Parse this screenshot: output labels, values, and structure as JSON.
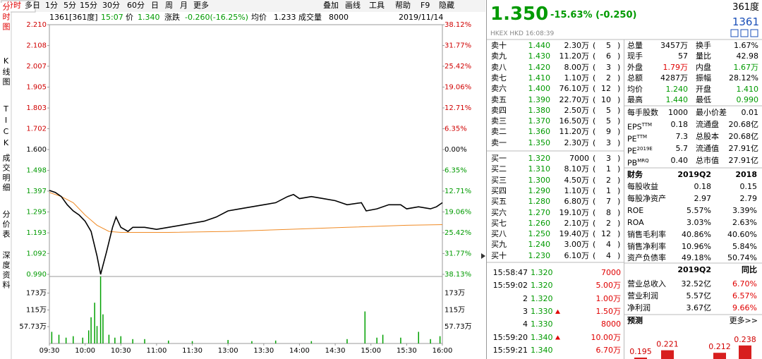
{
  "toolbar": {
    "tabs": [
      "分时",
      "多日",
      "1分",
      "5分",
      "15分",
      "30分",
      "60分",
      "日",
      "周",
      "月",
      "更多"
    ],
    "tools": [
      "叠加",
      "画线",
      "工具",
      "帮助",
      "F9",
      "隐藏"
    ]
  },
  "side_tabs": [
    "分时图",
    "K线图",
    "TICK",
    "成交明细",
    "分价表",
    "深度资料"
  ],
  "info": {
    "code": "1361[361度]",
    "time": "15:07",
    "price_label": "价",
    "price": "1.340",
    "change_label": "涨跌",
    "change": "-0.260(-16.25%)",
    "avg_label": "均价",
    "avg": "1.233",
    "vol_label": "成交量",
    "vol": "8000",
    "date": "2019/11/14"
  },
  "chart_data": {
    "type": "line",
    "xlim": [
      0,
      330
    ],
    "xticks": [
      {
        "value": 0,
        "label": "09:30"
      },
      {
        "value": 30,
        "label": "10:00"
      },
      {
        "value": 60,
        "label": "10:30"
      },
      {
        "value": 90,
        "label": "11:00"
      },
      {
        "value": 120,
        "label": "11:30"
      },
      {
        "value": 150,
        "label": "13:00"
      },
      {
        "value": 180,
        "label": "13:30"
      },
      {
        "value": 210,
        "label": "14:00"
      },
      {
        "value": 240,
        "label": "14:30"
      },
      {
        "value": 270,
        "label": "15:00"
      },
      {
        "value": 300,
        "label": "15:30"
      },
      {
        "value": 330,
        "label": "16:00"
      }
    ],
    "ylim": [
      0.99,
      2.21
    ],
    "yticks": [
      {
        "value": 2.21,
        "label": "2.210"
      },
      {
        "value": 2.108,
        "label": "2.108"
      },
      {
        "value": 2.007,
        "label": "2.007"
      },
      {
        "value": 1.905,
        "label": "1.905"
      },
      {
        "value": 1.803,
        "label": "1.803"
      },
      {
        "value": 1.702,
        "label": "1.702"
      },
      {
        "value": 1.6,
        "label": "1.600"
      },
      {
        "value": 1.498,
        "label": "1.498"
      },
      {
        "value": 1.397,
        "label": "1.397"
      },
      {
        "value": 1.295,
        "label": "1.295"
      },
      {
        "value": 1.193,
        "label": "1.193"
      },
      {
        "value": 1.092,
        "label": "1.092"
      },
      {
        "value": 0.99,
        "label": "0.990"
      }
    ],
    "y2lim": [
      -38.13,
      38.12
    ],
    "y2ticks": [
      {
        "value": 38.12,
        "label": "38.12%"
      },
      {
        "value": 31.77,
        "label": "31.77%"
      },
      {
        "value": 25.42,
        "label": "25.42%"
      },
      {
        "value": 19.06,
        "label": "19.06%"
      },
      {
        "value": 12.71,
        "label": "12.71%"
      },
      {
        "value": 6.35,
        "label": "6.35%"
      },
      {
        "value": 0,
        "label": "0.00%"
      },
      {
        "value": -6.35,
        "label": "6.35%"
      },
      {
        "value": -12.71,
        "label": "12.71%"
      },
      {
        "value": -19.06,
        "label": "19.06%"
      },
      {
        "value": -25.42,
        "label": "25.42%"
      },
      {
        "value": -31.77,
        "label": "31.77%"
      },
      {
        "value": -38.13,
        "label": "38.13%"
      }
    ],
    "series": [
      {
        "name": "价",
        "color": "#000000",
        "x": [
          0,
          5,
          10,
          15,
          20,
          25,
          30,
          35,
          40,
          43,
          48,
          53,
          56,
          60,
          66,
          70,
          80,
          90,
          100,
          110,
          120,
          130,
          140,
          150,
          160,
          170,
          180,
          190,
          200,
          205,
          210,
          220,
          230,
          240,
          250,
          262,
          266,
          275,
          285,
          295,
          300,
          310,
          320,
          325,
          330
        ],
        "values": [
          1.4,
          1.39,
          1.37,
          1.33,
          1.3,
          1.28,
          1.25,
          1.2,
          1.08,
          0.99,
          1.1,
          1.22,
          1.27,
          1.22,
          1.2,
          1.22,
          1.22,
          1.21,
          1.22,
          1.23,
          1.24,
          1.25,
          1.27,
          1.3,
          1.31,
          1.32,
          1.33,
          1.34,
          1.37,
          1.38,
          1.36,
          1.37,
          1.36,
          1.35,
          1.33,
          1.34,
          1.3,
          1.31,
          1.33,
          1.33,
          1.31,
          1.32,
          1.31,
          1.32,
          1.34
        ]
      },
      {
        "name": "均价",
        "color": "#f08a24",
        "x": [
          0,
          10,
          20,
          30,
          40,
          50,
          60,
          100,
          150,
          200,
          250,
          300,
          330
        ],
        "values": [
          1.39,
          1.37,
          1.34,
          1.28,
          1.23,
          1.2,
          1.195,
          1.195,
          1.2,
          1.21,
          1.22,
          1.23,
          1.233
        ]
      }
    ],
    "volume": {
      "color": "#00a000",
      "ylim": [
        0,
        230
      ],
      "yticks": [
        {
          "value": 57.73,
          "label": "57.73万"
        },
        {
          "value": 115,
          "label": "115万"
        },
        {
          "value": 173,
          "label": "173万"
        }
      ],
      "x": [
        2,
        8,
        14,
        20,
        28,
        33,
        35,
        38,
        40,
        43,
        45,
        50,
        55,
        60,
        70,
        80,
        100,
        120,
        150,
        170,
        190,
        220,
        250,
        265,
        275,
        280,
        295,
        310,
        320,
        328
      ],
      "values": [
        40,
        30,
        20,
        25,
        20,
        45,
        90,
        140,
        60,
        230,
        100,
        30,
        20,
        25,
        15,
        15,
        10,
        8,
        12,
        8,
        10,
        8,
        15,
        110,
        20,
        30,
        20,
        40,
        15,
        25
      ]
    }
  },
  "quote": {
    "price": "1.350",
    "change": "-15.63% (-0.250)",
    "name": "361度",
    "code": "1361",
    "meta": "HKEX  HKD  16:08:39"
  },
  "order_book": {
    "asks": [
      [
        "卖十",
        "1.440",
        "2.30万",
        "5"
      ],
      [
        "卖九",
        "1.430",
        "11.20万",
        "6"
      ],
      [
        "卖八",
        "1.420",
        "8.00万",
        "3"
      ],
      [
        "卖七",
        "1.410",
        "1.10万",
        "2"
      ],
      [
        "卖六",
        "1.400",
        "76.10万",
        "12"
      ],
      [
        "卖五",
        "1.390",
        "22.70万",
        "10"
      ],
      [
        "卖四",
        "1.380",
        "2.50万",
        "5"
      ],
      [
        "卖三",
        "1.370",
        "16.50万",
        "5"
      ],
      [
        "卖二",
        "1.360",
        "11.20万",
        "9"
      ],
      [
        "卖一",
        "1.350",
        "2.30万",
        "3"
      ]
    ],
    "bids": [
      [
        "买一",
        "1.320",
        "7000",
        "3"
      ],
      [
        "买二",
        "1.310",
        "8.10万",
        "1"
      ],
      [
        "买三",
        "1.300",
        "4.50万",
        "2"
      ],
      [
        "买四",
        "1.290",
        "1.10万",
        "1"
      ],
      [
        "买五",
        "1.280",
        "6.80万",
        "7"
      ],
      [
        "买六",
        "1.270",
        "19.10万",
        "8"
      ],
      [
        "买七",
        "1.260",
        "2.10万",
        "2"
      ],
      [
        "买八",
        "1.250",
        "19.40万",
        "12"
      ],
      [
        "买九",
        "1.240",
        "3.00万",
        "4"
      ],
      [
        "买十",
        "1.230",
        "6.10万",
        "4"
      ]
    ]
  },
  "stats": [
    [
      "总量",
      "3457万",
      "换手",
      "1.67%"
    ],
    [
      "现手",
      "57",
      "量比",
      "42.98"
    ],
    [
      "外盘",
      "1.79万",
      "内盘",
      "1.67万"
    ],
    [
      "总额",
      "4287万",
      "振幅",
      "28.12%"
    ],
    [
      "均价",
      "1.240",
      "开盘",
      "1.410"
    ],
    [
      "最高",
      "1.440",
      "最低",
      "0.990"
    ]
  ],
  "stats_colors": [
    [
      "",
      ""
    ],
    [
      "",
      ""
    ],
    [
      "up",
      "dn"
    ],
    [
      "",
      ""
    ],
    [
      "dn",
      "dn"
    ],
    [
      "dn",
      "dn"
    ]
  ],
  "fundamentals": [
    {
      "label": "每手股数",
      "value": "1000",
      "label2": "最小价差",
      "value2": "0.01"
    },
    {
      "label": "EPS",
      "sup": "TTM",
      "value": "0.18",
      "label2": "流通盘",
      "value2": "20.68亿"
    },
    {
      "label": "PE",
      "sup": "TTM",
      "value": "7.3",
      "label2": "总股本",
      "value2": "20.68亿"
    },
    {
      "label": "PE",
      "sup": "2019E",
      "value": "5.7",
      "label2": "流通值",
      "value2": "27.91亿"
    },
    {
      "label": "PB",
      "sup": "MRQ",
      "value": "0.40",
      "label2": "总市值",
      "value2": "27.91亿"
    }
  ],
  "finance": {
    "header": [
      "财务",
      "2019Q2",
      "2018"
    ],
    "rows": [
      [
        "每股收益",
        "0.18",
        "0.15"
      ],
      [
        "每股净资产",
        "2.97",
        "2.79"
      ],
      [
        "ROE",
        "5.57%",
        "3.39%"
      ],
      [
        "ROA",
        "3.03%",
        "2.63%"
      ],
      [
        "销售毛利率",
        "40.86%",
        "40.60%"
      ],
      [
        "销售净利率",
        "10.96%",
        "5.84%"
      ],
      [
        "资产负债率",
        "49.18%",
        "50.74%"
      ]
    ]
  },
  "income": {
    "header": [
      "2019Q2",
      "同比"
    ],
    "rows": [
      [
        "营业总收入",
        "32.52亿",
        "6.70%"
      ],
      [
        "营业利润",
        "5.57亿",
        "6.57%"
      ],
      [
        "净利润",
        "3.67亿",
        "9.66%"
      ]
    ]
  },
  "forecast": {
    "title": "预测",
    "more": "更多>>",
    "values": [
      0.195,
      0.221,
      0.212,
      0.238
    ]
  },
  "ticks": [
    {
      "time": "15:58:47",
      "price": "1.320",
      "vol": "7000"
    },
    {
      "time": "15:59:02",
      "price": "1.320",
      "vol": "5.00万"
    },
    {
      "time": "2",
      "price": "1.320",
      "vol": "1.00万"
    },
    {
      "time": "3",
      "price": "1.330",
      "vol": "1.50万",
      "up": true
    },
    {
      "time": "4",
      "price": "1.330",
      "vol": "8000"
    },
    {
      "time": "15:59:20",
      "price": "1.340",
      "vol": "10.00万",
      "up": true
    },
    {
      "time": "15:59:21",
      "price": "1.340",
      "vol": "6.70万"
    }
  ]
}
